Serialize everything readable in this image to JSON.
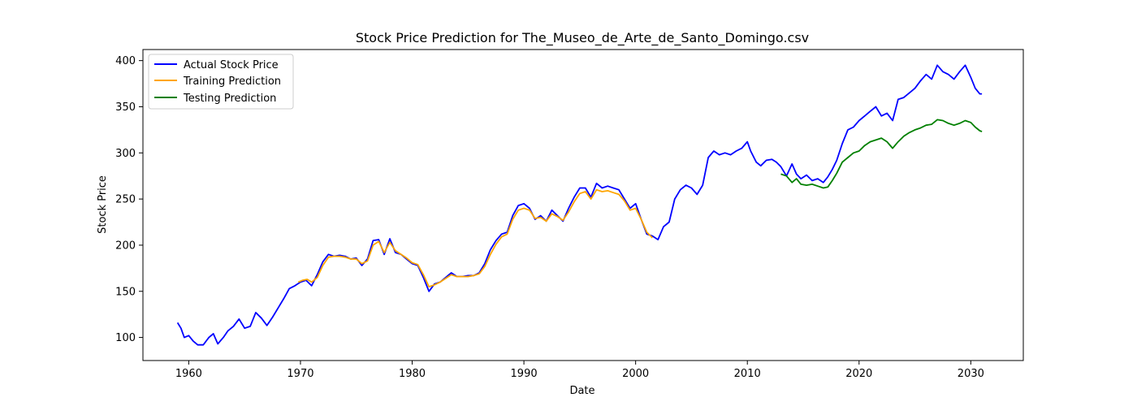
{
  "chart_data": {
    "type": "line",
    "title": "Stock Price Prediction for The_Museo_de_Arte_de_Santo_Domingo.csv",
    "xlabel": "Date",
    "ylabel": "Stock Price",
    "xlim": [
      1955.9,
      2034.7
    ],
    "ylim": [
      75,
      412
    ],
    "xticks": [
      1960,
      1970,
      1980,
      1990,
      2000,
      2010,
      2020,
      2030
    ],
    "yticks": [
      100,
      150,
      200,
      250,
      300,
      350,
      400
    ],
    "grid": false,
    "legend_position": "top-left",
    "series": [
      {
        "name": "Actual Stock Price",
        "color": "#0000ff",
        "points": [
          [
            1959.0,
            116
          ],
          [
            1959.3,
            110
          ],
          [
            1959.6,
            100
          ],
          [
            1960.0,
            102
          ],
          [
            1960.4,
            96
          ],
          [
            1960.8,
            92
          ],
          [
            1961.3,
            92
          ],
          [
            1961.8,
            100
          ],
          [
            1962.2,
            104
          ],
          [
            1962.6,
            93
          ],
          [
            1963.1,
            100
          ],
          [
            1963.5,
            107
          ],
          [
            1964.0,
            112
          ],
          [
            1964.5,
            120
          ],
          [
            1965.0,
            110
          ],
          [
            1965.5,
            112
          ],
          [
            1966.0,
            127
          ],
          [
            1966.5,
            121
          ],
          [
            1967.0,
            113
          ],
          [
            1967.5,
            122
          ],
          [
            1968.0,
            132
          ],
          [
            1968.5,
            142
          ],
          [
            1969.0,
            153
          ],
          [
            1969.5,
            156
          ],
          [
            1970.0,
            160
          ],
          [
            1970.5,
            162
          ],
          [
            1971.0,
            156
          ],
          [
            1971.5,
            168
          ],
          [
            1972.0,
            182
          ],
          [
            1972.5,
            190
          ],
          [
            1973.0,
            188
          ],
          [
            1973.5,
            189
          ],
          [
            1974.0,
            188
          ],
          [
            1974.5,
            185
          ],
          [
            1975.0,
            186
          ],
          [
            1975.5,
            178
          ],
          [
            1976.0,
            185
          ],
          [
            1976.5,
            205
          ],
          [
            1977.0,
            206
          ],
          [
            1977.5,
            190
          ],
          [
            1978.0,
            207
          ],
          [
            1978.5,
            192
          ],
          [
            1979.0,
            190
          ],
          [
            1979.5,
            185
          ],
          [
            1980.0,
            180
          ],
          [
            1980.5,
            178
          ],
          [
            1981.0,
            165
          ],
          [
            1981.5,
            150
          ],
          [
            1982.0,
            158
          ],
          [
            1982.5,
            160
          ],
          [
            1983.0,
            165
          ],
          [
            1983.5,
            170
          ],
          [
            1984.0,
            166
          ],
          [
            1984.5,
            166
          ],
          [
            1985.0,
            167
          ],
          [
            1985.5,
            167
          ],
          [
            1986.0,
            170
          ],
          [
            1986.5,
            180
          ],
          [
            1987.0,
            195
          ],
          [
            1987.5,
            205
          ],
          [
            1988.0,
            212
          ],
          [
            1988.5,
            214
          ],
          [
            1989.0,
            232
          ],
          [
            1989.5,
            243
          ],
          [
            1990.0,
            245
          ],
          [
            1990.5,
            240
          ],
          [
            1991.0,
            228
          ],
          [
            1991.5,
            232
          ],
          [
            1992.0,
            226
          ],
          [
            1992.5,
            238
          ],
          [
            1993.0,
            232
          ],
          [
            1993.5,
            226
          ],
          [
            1994.0,
            240
          ],
          [
            1994.5,
            252
          ],
          [
            1995.0,
            262
          ],
          [
            1995.5,
            262
          ],
          [
            1996.0,
            252
          ],
          [
            1996.5,
            267
          ],
          [
            1997.0,
            262
          ],
          [
            1997.5,
            264
          ],
          [
            1998.0,
            262
          ],
          [
            1998.5,
            260
          ],
          [
            1999.0,
            250
          ],
          [
            1999.5,
            240
          ],
          [
            2000.0,
            245
          ],
          [
            2000.5,
            228
          ],
          [
            2001.0,
            212
          ],
          [
            2001.5,
            210
          ],
          [
            2002.0,
            206
          ],
          [
            2002.5,
            220
          ],
          [
            2003.0,
            225
          ],
          [
            2003.5,
            250
          ],
          [
            2004.0,
            260
          ],
          [
            2004.5,
            265
          ],
          [
            2005.0,
            262
          ],
          [
            2005.5,
            255
          ],
          [
            2006.0,
            265
          ],
          [
            2006.5,
            295
          ],
          [
            2007.0,
            302
          ],
          [
            2007.5,
            298
          ],
          [
            2008.0,
            300
          ],
          [
            2008.5,
            298
          ],
          [
            2009.0,
            302
          ],
          [
            2009.5,
            305
          ],
          [
            2010.0,
            312
          ],
          [
            2010.3,
            302
          ],
          [
            2010.8,
            290
          ],
          [
            2011.2,
            286
          ],
          [
            2011.7,
            292
          ],
          [
            2012.2,
            293
          ],
          [
            2012.6,
            290
          ],
          [
            2013.0,
            285
          ],
          [
            2013.5,
            275
          ],
          [
            2014.0,
            288
          ],
          [
            2014.4,
            277
          ],
          [
            2014.8,
            272
          ],
          [
            2015.3,
            276
          ],
          [
            2015.8,
            270
          ],
          [
            2016.3,
            272
          ],
          [
            2016.8,
            268
          ],
          [
            2017.2,
            274
          ],
          [
            2017.6,
            282
          ],
          [
            2018.0,
            292
          ],
          [
            2018.5,
            310
          ],
          [
            2019.0,
            325
          ],
          [
            2019.5,
            328
          ],
          [
            2020.0,
            335
          ],
          [
            2020.5,
            340
          ],
          [
            2021.0,
            345
          ],
          [
            2021.5,
            350
          ],
          [
            2022.0,
            340
          ],
          [
            2022.5,
            343
          ],
          [
            2023.0,
            335
          ],
          [
            2023.5,
            358
          ],
          [
            2024.0,
            360
          ],
          [
            2024.5,
            365
          ],
          [
            2025.0,
            370
          ],
          [
            2025.5,
            378
          ],
          [
            2026.0,
            385
          ],
          [
            2026.5,
            380
          ],
          [
            2027.0,
            395
          ],
          [
            2027.5,
            388
          ],
          [
            2028.0,
            385
          ],
          [
            2028.5,
            380
          ],
          [
            2029.0,
            388
          ],
          [
            2029.5,
            395
          ],
          [
            2030.0,
            382
          ],
          [
            2030.4,
            370
          ],
          [
            2030.8,
            364
          ],
          [
            2031.0,
            364
          ]
        ]
      },
      {
        "name": "Training Prediction",
        "color": "#ffa500",
        "points": [
          [
            1969.8,
            160
          ],
          [
            1970.2,
            162
          ],
          [
            1970.6,
            163
          ],
          [
            1971.0,
            160
          ],
          [
            1971.5,
            165
          ],
          [
            1972.0,
            178
          ],
          [
            1972.5,
            187
          ],
          [
            1973.0,
            188
          ],
          [
            1973.5,
            188
          ],
          [
            1974.0,
            187
          ],
          [
            1974.5,
            185
          ],
          [
            1975.0,
            185
          ],
          [
            1975.5,
            180
          ],
          [
            1976.0,
            183
          ],
          [
            1976.5,
            200
          ],
          [
            1977.0,
            204
          ],
          [
            1977.5,
            192
          ],
          [
            1978.0,
            203
          ],
          [
            1978.5,
            194
          ],
          [
            1979.0,
            190
          ],
          [
            1979.5,
            186
          ],
          [
            1980.0,
            181
          ],
          [
            1980.5,
            179
          ],
          [
            1981.0,
            168
          ],
          [
            1981.5,
            155
          ],
          [
            1982.0,
            157
          ],
          [
            1982.5,
            160
          ],
          [
            1983.0,
            164
          ],
          [
            1983.5,
            168
          ],
          [
            1984.0,
            166
          ],
          [
            1984.5,
            166
          ],
          [
            1985.0,
            166
          ],
          [
            1985.5,
            167
          ],
          [
            1986.0,
            169
          ],
          [
            1986.5,
            177
          ],
          [
            1987.0,
            190
          ],
          [
            1987.5,
            201
          ],
          [
            1988.0,
            209
          ],
          [
            1988.5,
            212
          ],
          [
            1989.0,
            228
          ],
          [
            1989.5,
            238
          ],
          [
            1990.0,
            240
          ],
          [
            1990.5,
            238
          ],
          [
            1991.0,
            229
          ],
          [
            1991.5,
            230
          ],
          [
            1992.0,
            226
          ],
          [
            1992.5,
            234
          ],
          [
            1993.0,
            231
          ],
          [
            1993.5,
            227
          ],
          [
            1994.0,
            236
          ],
          [
            1994.5,
            247
          ],
          [
            1995.0,
            256
          ],
          [
            1995.5,
            258
          ],
          [
            1996.0,
            250
          ],
          [
            1996.5,
            260
          ],
          [
            1997.0,
            258
          ],
          [
            1997.5,
            259
          ],
          [
            1998.0,
            257
          ],
          [
            1998.5,
            255
          ],
          [
            1999.0,
            248
          ],
          [
            1999.5,
            238
          ],
          [
            2000.0,
            240
          ],
          [
            2000.5,
            228
          ],
          [
            2001.0,
            214
          ],
          [
            2001.5,
            208
          ]
        ]
      },
      {
        "name": "Testing Prediction",
        "color": "#008000",
        "points": [
          [
            2013.0,
            277
          ],
          [
            2013.5,
            275
          ],
          [
            2014.0,
            268
          ],
          [
            2014.4,
            272
          ],
          [
            2014.8,
            266
          ],
          [
            2015.3,
            265
          ],
          [
            2015.8,
            266
          ],
          [
            2016.3,
            264
          ],
          [
            2016.8,
            262
          ],
          [
            2017.2,
            263
          ],
          [
            2017.6,
            270
          ],
          [
            2018.0,
            278
          ],
          [
            2018.5,
            290
          ],
          [
            2019.0,
            295
          ],
          [
            2019.5,
            300
          ],
          [
            2020.0,
            302
          ],
          [
            2020.5,
            308
          ],
          [
            2021.0,
            312
          ],
          [
            2021.5,
            314
          ],
          [
            2022.0,
            316
          ],
          [
            2022.5,
            312
          ],
          [
            2023.0,
            305
          ],
          [
            2023.5,
            312
          ],
          [
            2024.0,
            318
          ],
          [
            2024.5,
            322
          ],
          [
            2025.0,
            325
          ],
          [
            2025.5,
            327
          ],
          [
            2026.0,
            330
          ],
          [
            2026.5,
            331
          ],
          [
            2027.0,
            336
          ],
          [
            2027.5,
            335
          ],
          [
            2028.0,
            332
          ],
          [
            2028.5,
            330
          ],
          [
            2029.0,
            332
          ],
          [
            2029.5,
            335
          ],
          [
            2030.0,
            333
          ],
          [
            2030.4,
            328
          ],
          [
            2030.8,
            324
          ],
          [
            2031.0,
            323
          ]
        ]
      }
    ]
  }
}
